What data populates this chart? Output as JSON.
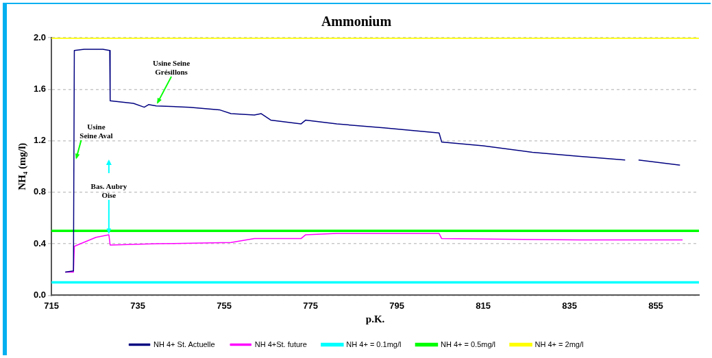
{
  "chart_data": {
    "type": "line",
    "title": "Ammonium",
    "xlabel": "p.K.",
    "ylabel": "NH₄ (mg/l)",
    "xlim": [
      715,
      865
    ],
    "xticks": [
      715,
      735,
      755,
      775,
      795,
      815,
      835,
      855
    ],
    "ylim": [
      0,
      2
    ],
    "yticks": [
      {
        "value": 0,
        "label": "0.0"
      },
      0.4,
      0.8,
      1.2,
      1.6,
      {
        "value": 2,
        "label": "2.0"
      }
    ],
    "grid": "y",
    "legend": "bottom",
    "marker": "none",
    "line_style": "solid",
    "series": [
      {
        "name": "NH 4+ St. Actuelle",
        "color": "#000080",
        "x": [
          718.2,
          720.1,
          720.3,
          722.6,
          726.9,
          728.5,
          728.6,
          734,
          736.5,
          737.5,
          739.3,
          747,
          753.9,
          756.6,
          762,
          763.6,
          765.8,
          772.8,
          773.9,
          781.1,
          792,
          804.8,
          805.4,
          815,
          826.4,
          837,
          847.9,
          849.5,
          851,
          860.6
        ],
        "values": [
          0.18,
          0.19,
          1.9,
          1.91,
          1.91,
          1.9,
          1.51,
          1.49,
          1.46,
          1.48,
          1.47,
          1.46,
          1.44,
          1.41,
          1.4,
          1.41,
          1.36,
          1.33,
          1.36,
          1.33,
          1.3,
          1.26,
          1.19,
          1.16,
          1.11,
          1.08,
          1.05,
          null,
          1.05,
          1.01
        ]
      },
      {
        "name": "NH 4+St. future",
        "color": "#ff00ff",
        "x": [
          718.2,
          720.1,
          720.3,
          721,
          725.3,
          728.3,
          728.6,
          739.6,
          756.6,
          762,
          772.8,
          773.9,
          781.1,
          804.8,
          805.4,
          837.4,
          861.2
        ],
        "values": [
          0.18,
          0.18,
          0.38,
          0.39,
          0.45,
          0.47,
          0.39,
          0.4,
          0.41,
          0.44,
          0.44,
          0.47,
          0.48,
          0.48,
          0.44,
          0.43,
          0.43
        ]
      }
    ],
    "ref_lines": [
      {
        "axis": "y",
        "value": 0.1,
        "label": "NH 4+ = 0.1mg/l",
        "color": "#00ffff"
      },
      {
        "axis": "y",
        "value": 0.5,
        "label": "NH 4+ = 0.5mg/l",
        "color": "#00ff00"
      },
      {
        "axis": "y",
        "value": 2,
        "label": "NH 4+ = 2mg/l",
        "color": "#ffff00"
      }
    ],
    "annotations": [
      {
        "text": "Usine Seine\nGrésillons",
        "x": 739.6,
        "y": 1.48
      },
      {
        "text": "Usine\nSeine Aval",
        "x": 720.3,
        "y": 1.05
      },
      {
        "text": "Bas. Aubry\nOise",
        "x": 728.3,
        "y": 0.47
      }
    ]
  }
}
